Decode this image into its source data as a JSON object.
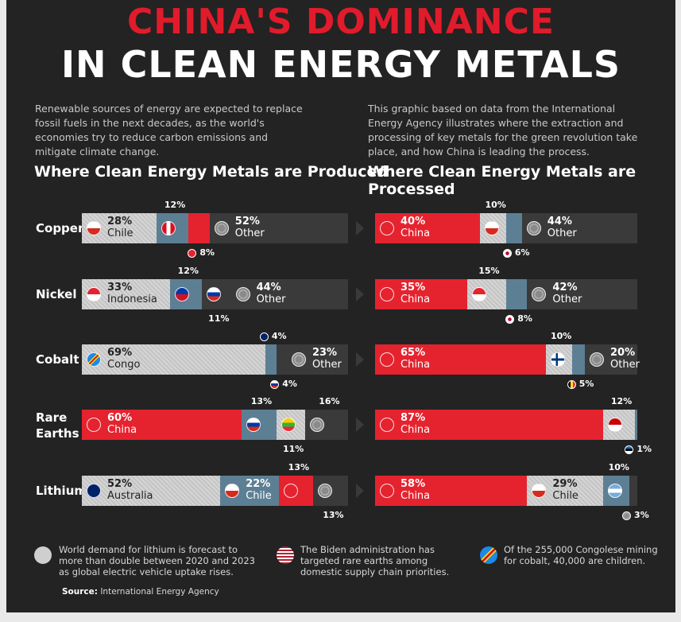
{
  "title": {
    "line1": "CHINA'S DOMINANCE",
    "line2": "IN CLEAN ENERGY METALS"
  },
  "intro": {
    "left": "Renewable sources of energy are expected to replace fossil fuels in the next decades, as the world's economies try to reduce carbon emissions and mitigate climate change.",
    "right": "This graphic based on data from the International Energy Agency illustrates where the extraction and processing of key metals for the green revolution take place, and how China is leading the process."
  },
  "colors": {
    "china": "#e5232f",
    "chile_share": "#cfcfcf",
    "secondary": "#5d7f93",
    "other": "#3a3a3a",
    "title_red": "#e11b2b"
  },
  "chart_data": [
    {
      "type": "bar",
      "stacked": true,
      "orientation": "horizontal",
      "title": "Where Clean Energy Metals are Produced",
      "categories": [
        "Copper",
        "Nickel",
        "Cobalt",
        "Rare Earths",
        "Lithium"
      ],
      "rows": [
        {
          "metal": "Copper",
          "segments": [
            {
              "country": "Chile",
              "pct": 28,
              "label": "28%",
              "color": "gray",
              "flag": "chile",
              "show_text": true
            },
            {
              "country": "Peru",
              "pct": 12,
              "label": "12%",
              "color": "blue",
              "flag": "peru",
              "show_text": false
            },
            {
              "country": "China",
              "pct": 8,
              "label": "8%",
              "color": "red",
              "flag": "",
              "show_text": false
            },
            {
              "country": "Other",
              "pct": 52,
              "label": "52%",
              "color": "dark",
              "flag": "other",
              "show_text": true
            }
          ]
        },
        {
          "metal": "Nickel",
          "segments": [
            {
              "country": "Indonesia",
              "pct": 33,
              "label": "33%",
              "color": "gray",
              "flag": "indonesia",
              "show_text": true
            },
            {
              "country": "Philippines",
              "pct": 12,
              "label": "12%",
              "color": "blue",
              "flag": "philippines",
              "show_text": false
            },
            {
              "country": "Russia",
              "pct": 11,
              "label": "11%",
              "color": "dark",
              "flag": "russia",
              "show_text": false
            },
            {
              "country": "Other",
              "pct": 44,
              "label": "44%",
              "color": "dark",
              "flag": "other",
              "show_text": true
            }
          ]
        },
        {
          "metal": "Cobalt",
          "segments": [
            {
              "country": "Congo",
              "pct": 69,
              "label": "69%",
              "color": "gray",
              "flag": "congo",
              "show_text": true
            },
            {
              "country": "Australia",
              "pct": 4,
              "label": "4%",
              "color": "blue",
              "flag": "",
              "show_text": false
            },
            {
              "country": "Russia",
              "pct": 4,
              "label": "4%",
              "color": "dark",
              "flag": "",
              "show_text": false
            },
            {
              "country": "Other",
              "pct": 23,
              "label": "23%",
              "color": "dark",
              "flag": "other",
              "show_text": true
            }
          ]
        },
        {
          "metal": "Rare Earths",
          "segments": [
            {
              "country": "China",
              "pct": 60,
              "label": "60%",
              "color": "red",
              "flag": "china",
              "show_text": true
            },
            {
              "country": "Russia",
              "pct": 13,
              "label": "13%",
              "color": "blue",
              "flag": "russia",
              "show_text": false
            },
            {
              "country": "Myanmar",
              "pct": 11,
              "label": "11%",
              "color": "gray",
              "flag": "myanmar",
              "show_text": false
            },
            {
              "country": "Other",
              "pct": 16,
              "label": "16%",
              "color": "dark",
              "flag": "other",
              "show_text": false
            }
          ]
        },
        {
          "metal": "Lithium",
          "segments": [
            {
              "country": "Australia",
              "pct": 52,
              "label": "52%",
              "color": "gray",
              "flag": "australia",
              "show_text": true
            },
            {
              "country": "Chile",
              "pct": 22,
              "label": "22%",
              "color": "blue",
              "flag": "chile",
              "show_text": true
            },
            {
              "country": "China",
              "pct": 13,
              "label": "13%",
              "color": "red",
              "flag": "china",
              "show_text": false
            },
            {
              "country": "Other",
              "pct": 13,
              "label": "13%",
              "color": "dark",
              "flag": "other",
              "show_text": false
            }
          ]
        }
      ],
      "annotations": [
        {
          "row": 0,
          "seg": 1,
          "pos": "above",
          "text": "12%",
          "flag": ""
        },
        {
          "row": 0,
          "seg": 2,
          "pos": "below",
          "text": "8%",
          "flag": "china"
        },
        {
          "row": 1,
          "seg": 1,
          "pos": "above",
          "text": "12%",
          "flag": ""
        },
        {
          "row": 1,
          "seg": 2,
          "pos": "below",
          "text": "11%",
          "flag": ""
        },
        {
          "row": 2,
          "seg": 1,
          "pos": "above",
          "text": "4%",
          "flag": "australia"
        },
        {
          "row": 2,
          "seg": 2,
          "pos": "below",
          "text": "4%",
          "flag": "russia"
        },
        {
          "row": 3,
          "seg": 1,
          "pos": "above",
          "text": "13%",
          "flag": ""
        },
        {
          "row": 3,
          "seg": 2,
          "pos": "below",
          "text": "11%",
          "flag": ""
        },
        {
          "row": 3,
          "seg": 3,
          "pos": "above",
          "text": "16%",
          "flag": ""
        },
        {
          "row": 4,
          "seg": 2,
          "pos": "above",
          "text": "13%",
          "flag": ""
        },
        {
          "row": 4,
          "seg": 3,
          "pos": "below",
          "text": "13%",
          "flag": ""
        }
      ]
    },
    {
      "type": "bar",
      "stacked": true,
      "orientation": "horizontal",
      "title": "Where Clean Energy Metals are Processed",
      "categories": [
        "Copper",
        "Nickel",
        "Cobalt",
        "Rare Earths",
        "Lithium"
      ],
      "rows": [
        {
          "metal": "Copper",
          "segments": [
            {
              "country": "China",
              "pct": 40,
              "label": "40%",
              "color": "red",
              "flag": "china",
              "show_text": true
            },
            {
              "country": "Chile",
              "pct": 10,
              "label": "10%",
              "color": "gray",
              "flag": "chile",
              "show_text": false
            },
            {
              "country": "Japan",
              "pct": 6,
              "label": "6%",
              "color": "blue",
              "flag": "",
              "show_text": false
            },
            {
              "country": "Other",
              "pct": 44,
              "label": "44%",
              "color": "dark",
              "flag": "other",
              "show_text": true
            }
          ]
        },
        {
          "metal": "Nickel",
          "segments": [
            {
              "country": "China",
              "pct": 35,
              "label": "35%",
              "color": "red",
              "flag": "china",
              "show_text": true
            },
            {
              "country": "Indonesia",
              "pct": 15,
              "label": "15%",
              "color": "gray",
              "flag": "indonesia",
              "show_text": false
            },
            {
              "country": "Japan",
              "pct": 8,
              "label": "8%",
              "color": "blue",
              "flag": "",
              "show_text": false
            },
            {
              "country": "Other",
              "pct": 42,
              "label": "42%",
              "color": "dark",
              "flag": "other",
              "show_text": true
            }
          ]
        },
        {
          "metal": "Cobalt",
          "segments": [
            {
              "country": "China",
              "pct": 65,
              "label": "65%",
              "color": "red",
              "flag": "china",
              "show_text": true
            },
            {
              "country": "Finland",
              "pct": 10,
              "label": "10%",
              "color": "gray",
              "flag": "finland",
              "show_text": false
            },
            {
              "country": "Belgium",
              "pct": 5,
              "label": "5%",
              "color": "blue",
              "flag": "",
              "show_text": false
            },
            {
              "country": "Other",
              "pct": 20,
              "label": "20%",
              "color": "dark",
              "flag": "other",
              "show_text": true
            }
          ]
        },
        {
          "metal": "Rare Earths",
          "segments": [
            {
              "country": "China",
              "pct": 87,
              "label": "87%",
              "color": "red",
              "flag": "china",
              "show_text": true
            },
            {
              "country": "Malaysia",
              "pct": 12,
              "label": "12%",
              "color": "gray",
              "flag": "malaysia",
              "show_text": false
            },
            {
              "country": "Estonia",
              "pct": 1,
              "label": "1%",
              "color": "blue",
              "flag": "",
              "show_text": false
            }
          ]
        },
        {
          "metal": "Lithium",
          "segments": [
            {
              "country": "China",
              "pct": 58,
              "label": "58%",
              "color": "red",
              "flag": "china",
              "show_text": true
            },
            {
              "country": "Chile",
              "pct": 29,
              "label": "29%",
              "color": "gray",
              "flag": "chile",
              "show_text": true
            },
            {
              "country": "Argentina",
              "pct": 10,
              "label": "10%",
              "color": "blue",
              "flag": "argentina",
              "show_text": false
            },
            {
              "country": "Other",
              "pct": 3,
              "label": "3%",
              "color": "dark",
              "flag": "",
              "show_text": false
            }
          ]
        }
      ],
      "annotations": [
        {
          "row": 0,
          "seg": 1,
          "pos": "above",
          "text": "10%",
          "flag": ""
        },
        {
          "row": 0,
          "seg": 2,
          "pos": "below",
          "text": "6%",
          "flag": "japan"
        },
        {
          "row": 1,
          "seg": 1,
          "pos": "above",
          "text": "15%",
          "flag": ""
        },
        {
          "row": 1,
          "seg": 2,
          "pos": "below",
          "text": "8%",
          "flag": "japan"
        },
        {
          "row": 2,
          "seg": 1,
          "pos": "above",
          "text": "10%",
          "flag": ""
        },
        {
          "row": 2,
          "seg": 2,
          "pos": "below",
          "text": "5%",
          "flag": "belgium"
        },
        {
          "row": 3,
          "seg": 1,
          "pos": "above",
          "text": "12%",
          "flag": ""
        },
        {
          "row": 3,
          "seg": 2,
          "pos": "below",
          "text": "1%",
          "flag": "estonia"
        },
        {
          "row": 4,
          "seg": 2,
          "pos": "above",
          "text": "10%",
          "flag": ""
        },
        {
          "row": 4,
          "seg": 3,
          "pos": "below",
          "text": "3%",
          "flag": "other"
        }
      ]
    }
  ],
  "row_labels": [
    "Copper",
    "Nickel",
    "Cobalt",
    "Rare\nEarths",
    "Lithium"
  ],
  "notes": [
    {
      "icon": "battery-icon",
      "text": "World demand for lithium is forecast to more than double between 2020 and 2023 as global electric vehicle uptake rises."
    },
    {
      "icon": "usa-flag-icon",
      "text": "The Biden administration has targeted rare earths among domestic supply chain priorities."
    },
    {
      "icon": "congo-flag-icon",
      "text": "Of the 255,000 Congolese mining for cobalt, 40,000 are children."
    }
  ],
  "source": {
    "label": "Source:",
    "text": "International Energy Agency"
  }
}
